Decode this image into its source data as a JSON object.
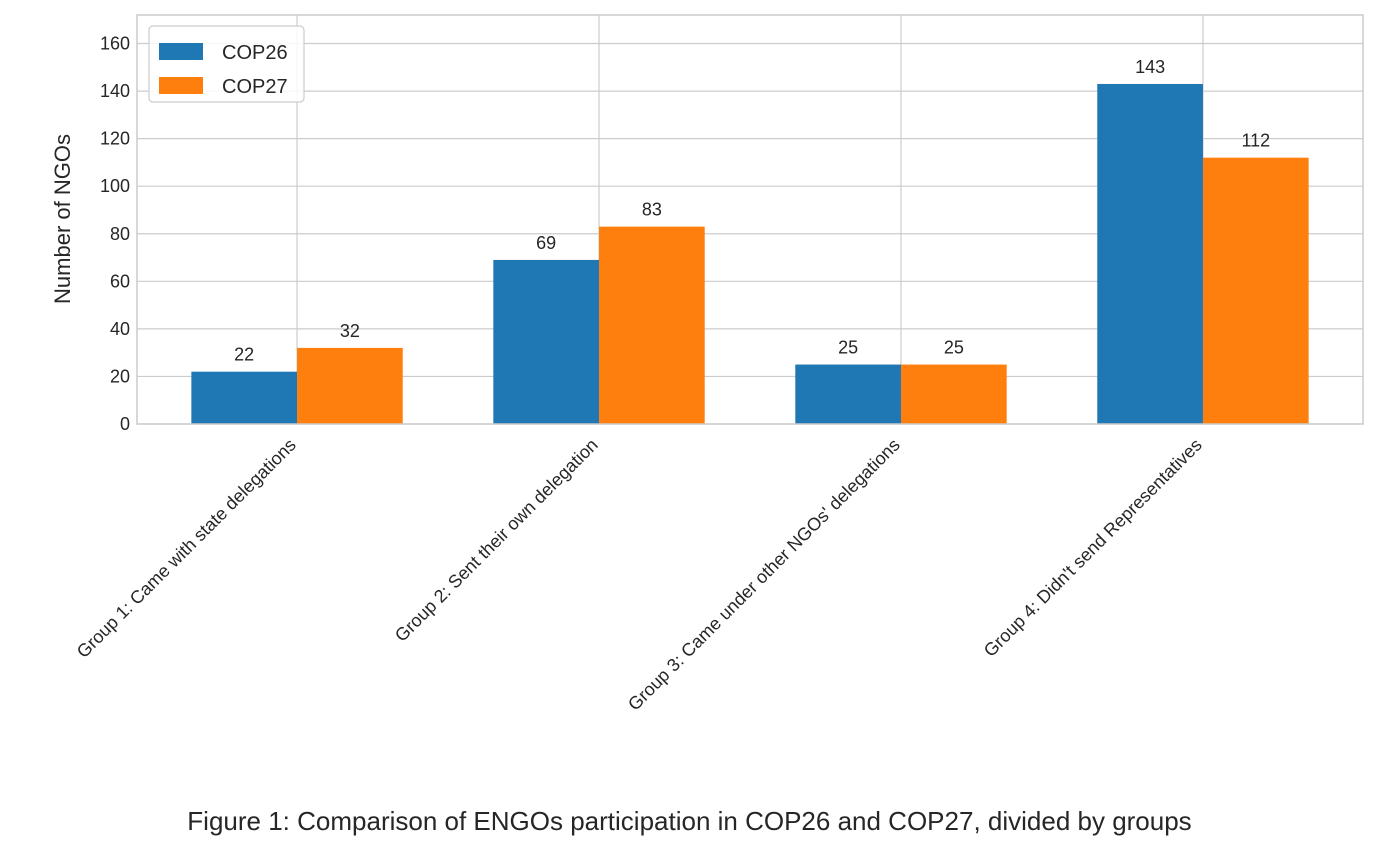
{
  "chart_data": {
    "type": "bar",
    "categories": [
      "Group 1: Came with state delegations",
      "Group 2: Sent their own delegation",
      "Group 3: Came under other NGOs' delegations",
      "Group 4: Didn't send Representatives"
    ],
    "series": [
      {
        "name": "COP26",
        "values": [
          22,
          69,
          25,
          143
        ],
        "color": "#1f77b4"
      },
      {
        "name": "COP27",
        "values": [
          32,
          83,
          25,
          112
        ],
        "color": "#ff7f0e"
      }
    ],
    "xlabel": "",
    "ylabel": "Number of NGOs",
    "ylim": [
      0,
      172
    ],
    "yticks": [
      0,
      20,
      40,
      60,
      80,
      100,
      120,
      140,
      160
    ],
    "grid": true,
    "legend_position": "top-left",
    "caption": "Figure 1: Comparison of ENGOs participation in COP26 and COP27, divided by groups"
  }
}
